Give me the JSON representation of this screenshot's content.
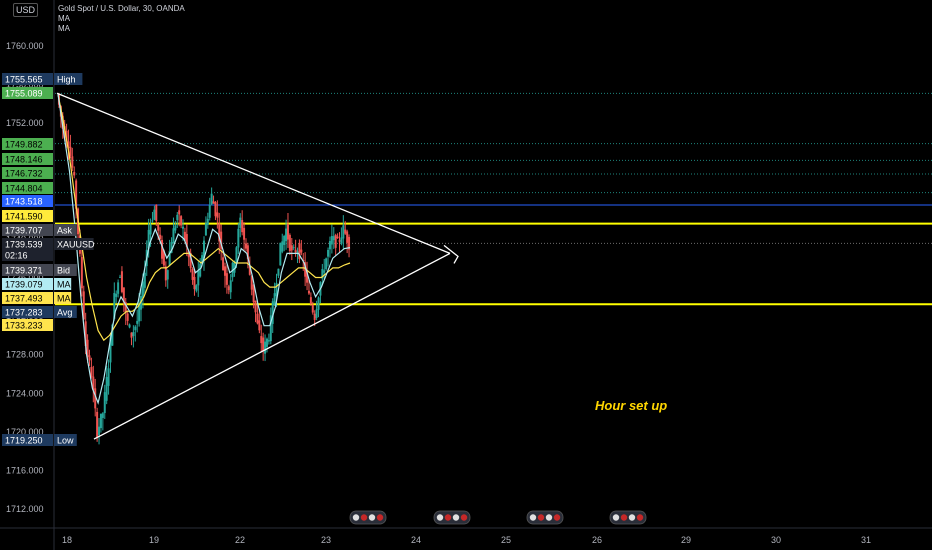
{
  "header": {
    "currency": "USD",
    "title": "Gold Spot / U.S. Dollar, 30, OANDA",
    "ma1": "MA",
    "ma2": "MA"
  },
  "annotation": "Hour set up",
  "colors": {
    "up": "#26a69a",
    "down": "#ef5350",
    "ma_fast": "#b2ebf2",
    "ma_slow": "#ffe44d",
    "level": "#ffff00",
    "triangle": "#ffffff",
    "support_res": "#26a69a"
  },
  "chart_data": {
    "type": "candlestick",
    "symbol": "XAUUSD",
    "y_ticks": [
      1760.0,
      1756.0,
      1752.0,
      1748.0,
      1744.0,
      1740.0,
      1736.0,
      1732.0,
      1728.0,
      1724.0,
      1720.0,
      1716.0,
      1712.0
    ],
    "x_ticks": [
      "18",
      "19",
      "22",
      "23",
      "24",
      "25",
      "26",
      "29",
      "30",
      "31"
    ],
    "ylim": [
      1711.5,
      1762.2
    ],
    "price_tags": [
      {
        "value": "1755.565",
        "label": "High",
        "bg": "#1e3a5f",
        "fg": "#ffffff"
      },
      {
        "value": "1755.089",
        "label": "",
        "bg": "#4caf50",
        "fg": "#ffffff"
      },
      {
        "value": "1749.882",
        "label": "",
        "bg": "#4caf50",
        "fg": "#000000"
      },
      {
        "value": "1748.146",
        "label": "",
        "bg": "#4caf50",
        "fg": "#000000"
      },
      {
        "value": "1746.732",
        "label": "",
        "bg": "#4caf50",
        "fg": "#000000"
      },
      {
        "value": "1744.804",
        "label": "",
        "bg": "#4caf50",
        "fg": "#000000"
      },
      {
        "value": "1743.518",
        "label": "",
        "bg": "#2962ff",
        "fg": "#ffffff"
      },
      {
        "value": "1741.590",
        "label": "",
        "bg": "#ffeb3b",
        "fg": "#000000"
      },
      {
        "value": "1739.707",
        "label": "Ask",
        "bg": "#434651",
        "fg": "#ffffff"
      },
      {
        "value": "1739.539",
        "label": "XAUUSD",
        "bg": "#1e222d",
        "fg": "#ffffff"
      },
      {
        "value": "02:16",
        "label": "",
        "bg": "#1e222d",
        "fg": "#ffffff"
      },
      {
        "value": "1739.371",
        "label": "Bid",
        "bg": "#434651",
        "fg": "#ffffff"
      },
      {
        "value": "1739.079",
        "label": "MA",
        "bg": "#b2ebf2",
        "fg": "#000000"
      },
      {
        "value": "1737.493",
        "label": "MA",
        "bg": "#ffe44d",
        "fg": "#000000"
      },
      {
        "value": "1737.283",
        "label": "Avg",
        "bg": "#1e3a5f",
        "fg": "#ffffff"
      },
      {
        "value": "1733.233",
        "label": "",
        "bg": "#ffe44d",
        "fg": "#000000"
      },
      {
        "value": "1719.250",
        "label": "Low",
        "bg": "#1e3a5f",
        "fg": "#ffffff"
      }
    ],
    "horizontal_levels": [
      {
        "price": 1741.59,
        "style": "solid",
        "color": "#ffff00"
      },
      {
        "price": 1733.233,
        "style": "solid",
        "color": "#ffff00"
      },
      {
        "price": 1743.518,
        "style": "solid",
        "color": "#2962ff"
      },
      {
        "price": 1755.089,
        "style": "dotted",
        "color": "#26a69a"
      },
      {
        "price": 1749.882,
        "style": "dotted",
        "color": "#26a69a"
      },
      {
        "price": 1748.146,
        "style": "dotted",
        "color": "#26a69a"
      },
      {
        "price": 1746.732,
        "style": "dotted",
        "color": "#26a69a"
      },
      {
        "price": 1744.804,
        "style": "dotted",
        "color": "#26a69a"
      },
      {
        "price": 1739.539,
        "style": "dotted",
        "color": "#888888"
      }
    ],
    "triangle": {
      "apex_day": "24",
      "upper_start": 1755.1,
      "lower_start": 1719.25,
      "apex_price": 1738.5
    },
    "candles_close_path": [
      1755.0,
      1751.5,
      1750.0,
      1746.0,
      1738.0,
      1729.0,
      1726.0,
      1720.0,
      1722.0,
      1727.0,
      1734.0,
      1736.5,
      1732.0,
      1730.0,
      1731.5,
      1735.0,
      1741.0,
      1743.0,
      1739.5,
      1736.0,
      1740.0,
      1742.5,
      1741.0,
      1738.0,
      1734.5,
      1737.0,
      1741.5,
      1744.5,
      1742.0,
      1737.0,
      1735.0,
      1738.0,
      1742.0,
      1739.0,
      1735.0,
      1731.0,
      1728.5,
      1730.0,
      1734.5,
      1739.0,
      1741.0,
      1738.5,
      1739.0,
      1737.5,
      1734.0,
      1732.0,
      1735.5,
      1738.0,
      1740.0,
      1739.5,
      1741.0,
      1739.5
    ],
    "ma_fast_path": [
      1755.0,
      1751.0,
      1747.0,
      1741.0,
      1734.0,
      1728.0,
      1724.5,
      1723.0,
      1725.5,
      1729.0,
      1732.5,
      1734.0,
      1733.0,
      1732.0,
      1733.5,
      1736.5,
      1739.5,
      1741.0,
      1739.5,
      1738.0,
      1739.0,
      1740.5,
      1740.0,
      1738.5,
      1736.5,
      1737.0,
      1739.0,
      1741.0,
      1740.5,
      1738.5,
      1736.5,
      1737.0,
      1739.0,
      1738.5,
      1736.0,
      1733.0,
      1731.0,
      1731.0,
      1733.0,
      1736.5,
      1738.5,
      1738.5,
      1738.5,
      1737.5,
      1735.5,
      1734.0,
      1735.0,
      1736.5,
      1738.0,
      1738.5,
      1739.0,
      1739.1
    ],
    "ma_slow_path": [
      1755.0,
      1752.0,
      1748.5,
      1744.0,
      1740.0,
      1736.0,
      1733.0,
      1730.5,
      1729.5,
      1730.0,
      1731.0,
      1732.0,
      1732.5,
      1732.5,
      1733.0,
      1734.0,
      1735.5,
      1736.5,
      1737.0,
      1737.0,
      1737.5,
      1738.0,
      1738.5,
      1738.5,
      1738.0,
      1737.5,
      1738.0,
      1738.5,
      1739.0,
      1738.5,
      1738.0,
      1737.5,
      1737.5,
      1737.5,
      1737.0,
      1736.5,
      1735.5,
      1735.0,
      1735.0,
      1735.5,
      1736.0,
      1736.5,
      1737.0,
      1737.0,
      1736.5,
      1736.0,
      1736.0,
      1736.5,
      1737.0,
      1737.0,
      1737.3,
      1737.5
    ]
  }
}
